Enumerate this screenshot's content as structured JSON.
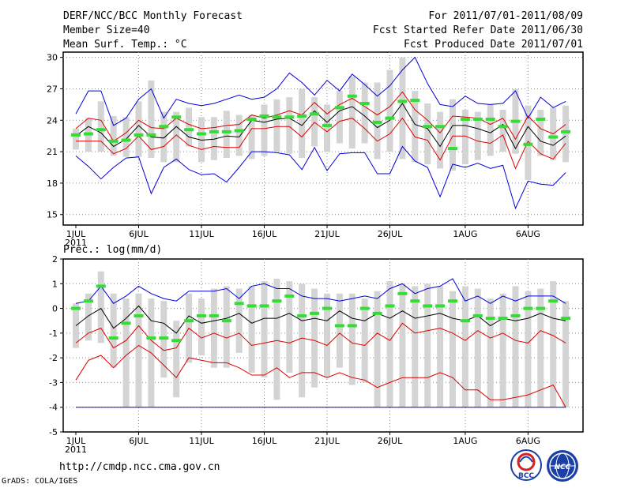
{
  "header": {
    "title": "DERF/NCC/BCC Monthly Forecast",
    "member_size": "Member Size=40",
    "variable": "Mean Surf. Temp.: °C",
    "period": "For 2011/07/01-2011/08/09",
    "fcst_started": "Fcst Started Refer Date 2011/06/30",
    "fcst_produced": "Fcst Produced Date 2011/07/01"
  },
  "footer": {
    "url": "http://cmdp.ncc.cma.gov.cn",
    "grads": "GrADS: COLA/IGES",
    "logo_bcc": "BCC",
    "logo_ncc": "NCC"
  },
  "colors": {
    "box": "#d4d4d4",
    "obs": "#33dd33",
    "mean": "#000000",
    "inner": "#dd0000",
    "outer": "#0000dd",
    "grid": "#888888"
  },
  "chart_data": [
    {
      "type": "line",
      "title": "Mean Surf. Temp.: °C",
      "xlabel": "",
      "ylabel": "",
      "x": [
        1,
        2,
        3,
        4,
        5,
        6,
        7,
        8,
        9,
        10,
        11,
        12,
        13,
        14,
        15,
        16,
        17,
        18,
        19,
        20,
        21,
        22,
        23,
        24,
        25,
        26,
        27,
        28,
        29,
        30,
        31,
        32,
        33,
        34,
        35,
        36,
        37,
        38,
        39,
        40
      ],
      "xtick_labels": [
        "1JUL",
        "6JUL",
        "11JUL",
        "16JUL",
        "21JUL",
        "26JUL",
        "1AUG",
        "6AUG"
      ],
      "xtick_days": [
        1,
        6,
        11,
        16,
        21,
        26,
        32,
        37
      ],
      "year_label": "2011",
      "ylim": [
        14,
        30.5
      ],
      "yticks": [
        15,
        18,
        21,
        24,
        27,
        30
      ],
      "grid": true,
      "boxes": {
        "low": [
          21.2,
          21.0,
          21.0,
          20.6,
          20.5,
          20.5,
          20.4,
          20.0,
          20.0,
          21.5,
          20.0,
          20.2,
          20.4,
          20.6,
          20.3,
          20.6,
          21.0,
          20.8,
          20.4,
          21.5,
          21.0,
          21.8,
          21.3,
          21.8,
          20.3,
          21.0,
          20.3,
          20.0,
          19.8,
          19.4,
          19.2,
          19.8,
          20.2,
          20.6,
          21.0,
          20.8,
          18.3,
          20.6,
          20.2,
          20.0
        ],
        "high": [
          23.2,
          24.2,
          25.8,
          24.4,
          24.3,
          25.8,
          27.8,
          24.8,
          24.8,
          25.2,
          24.3,
          24.3,
          24.9,
          24.5,
          24.5,
          25.5,
          26.0,
          26.2,
          27.0,
          26.2,
          25.5,
          26.8,
          28.2,
          27.6,
          27.6,
          28.8,
          30.0,
          26.8,
          25.6,
          24.8,
          26.0,
          25.0,
          24.8,
          25.5,
          25.0,
          27.0,
          25.4,
          25.0,
          25.2,
          25.4
        ]
      },
      "series": [
        {
          "name": "outer-max",
          "color": "#0000dd",
          "values": [
            24.6,
            26.8,
            26.8,
            23.5,
            24.2,
            26.0,
            27.0,
            24.2,
            26.0,
            25.6,
            25.4,
            25.6,
            26.0,
            26.4,
            26.0,
            26.2,
            27.0,
            28.5,
            27.6,
            26.4,
            27.8,
            26.8,
            28.4,
            27.4,
            26.3,
            27.3,
            28.8,
            30.0,
            27.5,
            25.5,
            25.3,
            26.3,
            25.6,
            25.5,
            25.6,
            26.8,
            24.2,
            26.2,
            25.2,
            25.8
          ]
        },
        {
          "name": "inner-max",
          "color": "#dd0000",
          "values": [
            23.2,
            24.2,
            24.0,
            22.0,
            22.8,
            24.0,
            23.3,
            23.2,
            24.2,
            23.6,
            23.2,
            23.3,
            23.5,
            23.6,
            24.5,
            24.2,
            24.5,
            24.9,
            24.5,
            25.7,
            24.6,
            25.5,
            26.1,
            25.3,
            24.5,
            25.3,
            26.7,
            25.0,
            24.0,
            22.8,
            24.4,
            24.3,
            24.2,
            23.6,
            24.2,
            22.2,
            24.4,
            23.2,
            22.7,
            23.6
          ]
        },
        {
          "name": "ensemble-mean",
          "color": "#000000",
          "values": [
            22.5,
            23.4,
            22.8,
            21.5,
            22.2,
            23.5,
            22.4,
            22.3,
            23.4,
            22.4,
            22.1,
            22.2,
            22.5,
            22.4,
            24.0,
            23.8,
            24.1,
            24.2,
            23.5,
            24.9,
            23.8,
            24.9,
            25.3,
            24.4,
            23.3,
            24.0,
            25.6,
            23.6,
            23.2,
            21.5,
            23.5,
            23.5,
            23.2,
            22.8,
            23.6,
            21.3,
            23.4,
            22.0,
            21.6,
            22.5
          ]
        },
        {
          "name": "inner-min",
          "color": "#dd0000",
          "values": [
            22.0,
            22.0,
            22.0,
            20.8,
            21.3,
            22.5,
            21.2,
            21.5,
            22.6,
            21.6,
            21.2,
            21.5,
            21.4,
            21.4,
            23.2,
            23.2,
            23.4,
            23.4,
            22.4,
            23.8,
            22.9,
            23.9,
            24.2,
            23.2,
            22.0,
            22.7,
            24.2,
            22.4,
            22.1,
            20.2,
            22.5,
            22.5,
            22.0,
            21.8,
            22.6,
            19.4,
            22.0,
            20.8,
            20.3,
            21.8
          ]
        },
        {
          "name": "outer-min",
          "color": "#0000dd",
          "values": [
            20.6,
            19.6,
            18.4,
            19.5,
            20.4,
            20.5,
            17.0,
            19.5,
            20.3,
            19.3,
            18.8,
            18.9,
            18.1,
            19.5,
            21.0,
            21.0,
            20.9,
            20.7,
            19.3,
            21.4,
            19.2,
            20.8,
            20.9,
            20.9,
            18.9,
            18.9,
            21.5,
            20.1,
            19.5,
            16.7,
            19.8,
            19.5,
            19.9,
            19.4,
            19.7,
            15.6,
            18.2,
            17.9,
            17.8,
            19.0
          ]
        }
      ],
      "observed": [
        22.6,
        22.7,
        23.1,
        22.0,
        22.1,
        22.6,
        22.6,
        23.4,
        24.3,
        23.1,
        22.7,
        22.9,
        22.9,
        23.0,
        24.1,
        24.4,
        24.3,
        24.3,
        24.4,
        24.6,
        23.5,
        25.2,
        26.3,
        25.6,
        23.8,
        24.2,
        25.8,
        25.9,
        23.4,
        23.4,
        21.3,
        24.1,
        24.1,
        24.1,
        23.4,
        23.9,
        21.7,
        24.1,
        22.4,
        22.9
      ]
    },
    {
      "type": "line",
      "title": "Prec.: log(mm/d)",
      "xlabel": "",
      "ylabel": "",
      "x": [
        1,
        2,
        3,
        4,
        5,
        6,
        7,
        8,
        9,
        10,
        11,
        12,
        13,
        14,
        15,
        16,
        17,
        18,
        19,
        20,
        21,
        22,
        23,
        24,
        25,
        26,
        27,
        28,
        29,
        30,
        31,
        32,
        33,
        34,
        35,
        36,
        37,
        38,
        39,
        40
      ],
      "xtick_labels": [
        "1JUL",
        "6JUL",
        "11JUL",
        "16JUL",
        "21JUL",
        "26JUL",
        "1AUG",
        "6AUG"
      ],
      "xtick_days": [
        1,
        6,
        11,
        16,
        21,
        26,
        32,
        37
      ],
      "year_label": "2011",
      "ylim": [
        -5,
        2
      ],
      "yticks": [
        -5,
        -4,
        -3,
        -2,
        -1,
        0,
        1,
        2
      ],
      "grid": true,
      "boxes": {
        "low": [
          -1.6,
          -1.3,
          -1.4,
          -2.4,
          -4.0,
          -4.0,
          -4.0,
          -2.8,
          -3.6,
          -2.2,
          -1.9,
          -2.4,
          -2.4,
          -1.8,
          -2.6,
          -2.8,
          -3.7,
          -2.6,
          -3.6,
          -3.2,
          -2.8,
          -2.4,
          -3.1,
          -3.0,
          -4.0,
          -4.0,
          -4.0,
          -4.0,
          -4.0,
          -4.0,
          -4.0,
          -4.0,
          -4.0,
          -4.0,
          -4.0,
          -4.0,
          -4.0,
          -4.0,
          -4.0,
          -4.0
        ],
        "high": [
          0.2,
          0.6,
          1.5,
          0.6,
          0.4,
          0.6,
          0.4,
          0.3,
          -0.5,
          0.6,
          0.4,
          0.8,
          0.9,
          0.8,
          0.9,
          1.1,
          1.2,
          1.1,
          1.0,
          0.8,
          0.6,
          0.6,
          0.6,
          0.4,
          0.7,
          1.1,
          1.0,
          0.9,
          1.0,
          0.9,
          0.7,
          0.9,
          0.8,
          0.4,
          0.6,
          0.9,
          0.7,
          0.8,
          1.1,
          0.3
        ]
      },
      "series": [
        {
          "name": "outer-max",
          "color": "#0000dd",
          "values": [
            0.2,
            0.3,
            0.9,
            0.2,
            0.5,
            0.9,
            0.6,
            0.4,
            0.3,
            0.7,
            0.7,
            0.7,
            0.8,
            0.4,
            0.9,
            1.0,
            0.8,
            0.8,
            0.5,
            0.4,
            0.4,
            0.3,
            0.4,
            0.5,
            0.4,
            0.8,
            1.0,
            0.6,
            0.8,
            0.9,
            1.2,
            0.3,
            0.5,
            0.2,
            0.5,
            0.3,
            0.5,
            0.5,
            0.5,
            0.2
          ]
        },
        {
          "name": "inner-max",
          "color": "#000000",
          "values": [
            -0.7,
            -0.3,
            0.0,
            -0.8,
            -0.4,
            0.1,
            -0.5,
            -0.6,
            -1.0,
            -0.3,
            -0.6,
            -0.5,
            -0.4,
            -0.2,
            -0.6,
            -0.4,
            -0.4,
            -0.2,
            -0.5,
            -0.4,
            -0.5,
            -0.1,
            -0.4,
            -0.5,
            -0.2,
            -0.4,
            -0.1,
            -0.4,
            -0.3,
            -0.2,
            -0.4,
            -0.5,
            -0.3,
            -0.7,
            -0.4,
            -0.5,
            -0.4,
            -0.2,
            -0.4,
            -0.5
          ]
        },
        {
          "name": "ensemble-mean",
          "color": "#dd0000",
          "values": [
            -1.4,
            -1.0,
            -0.8,
            -1.6,
            -1.3,
            -0.7,
            -1.3,
            -1.7,
            -1.6,
            -0.8,
            -1.2,
            -1.0,
            -1.2,
            -1.0,
            -1.5,
            -1.4,
            -1.3,
            -1.4,
            -1.2,
            -1.3,
            -1.5,
            -1.0,
            -1.4,
            -1.5,
            -1.0,
            -1.3,
            -0.6,
            -1.0,
            -0.9,
            -0.8,
            -1.0,
            -1.3,
            -0.9,
            -1.2,
            -1.0,
            -1.3,
            -1.4,
            -0.9,
            -1.1,
            -1.4
          ]
        },
        {
          "name": "inner-min",
          "color": "#dd0000",
          "values": [
            -2.9,
            -2.1,
            -1.9,
            -2.4,
            -1.9,
            -1.5,
            -1.8,
            -2.3,
            -2.8,
            -2.0,
            -2.1,
            -2.2,
            -2.2,
            -2.4,
            -2.7,
            -2.7,
            -2.4,
            -2.8,
            -2.6,
            -2.6,
            -2.8,
            -2.6,
            -2.8,
            -2.9,
            -3.2,
            -3.0,
            -2.8,
            -2.8,
            -2.8,
            -2.6,
            -2.8,
            -3.3,
            -3.3,
            -3.7,
            -3.7,
            -3.6,
            -3.5,
            -3.3,
            -3.1,
            -4.0
          ]
        },
        {
          "name": "outer-min",
          "color": "#0000dd",
          "values": [
            -4.0,
            -4.0,
            -4.0,
            -4.0,
            -4.0,
            -4.0,
            -4.0,
            -4.0,
            -4.0,
            -4.0,
            -4.0,
            -4.0,
            -4.0,
            -4.0,
            -4.0,
            -4.0,
            -4.0,
            -4.0,
            -4.0,
            -4.0,
            -4.0,
            -4.0,
            -4.0,
            -4.0,
            -4.0,
            -4.0,
            -4.0,
            -4.0,
            -4.0,
            -4.0,
            -4.0,
            -4.0,
            -4.0,
            -4.0,
            -4.0,
            -4.0,
            -4.0,
            -4.0,
            -4.0,
            -4.0
          ]
        }
      ],
      "observed": [
        0.0,
        0.3,
        0.9,
        -1.2,
        -0.6,
        -0.3,
        -1.2,
        -1.2,
        -1.3,
        -0.5,
        -0.3,
        -0.3,
        -0.5,
        0.2,
        0.1,
        0.1,
        0.3,
        0.5,
        -0.3,
        -0.2,
        0.0,
        -0.7,
        -0.7,
        0.0,
        -0.2,
        0.1,
        0.6,
        0.3,
        0.1,
        0.1,
        0.3,
        -0.5,
        -0.3,
        -0.4,
        -0.4,
        -0.3,
        0.0,
        0.0,
        0.3,
        -0.4
      ]
    }
  ]
}
